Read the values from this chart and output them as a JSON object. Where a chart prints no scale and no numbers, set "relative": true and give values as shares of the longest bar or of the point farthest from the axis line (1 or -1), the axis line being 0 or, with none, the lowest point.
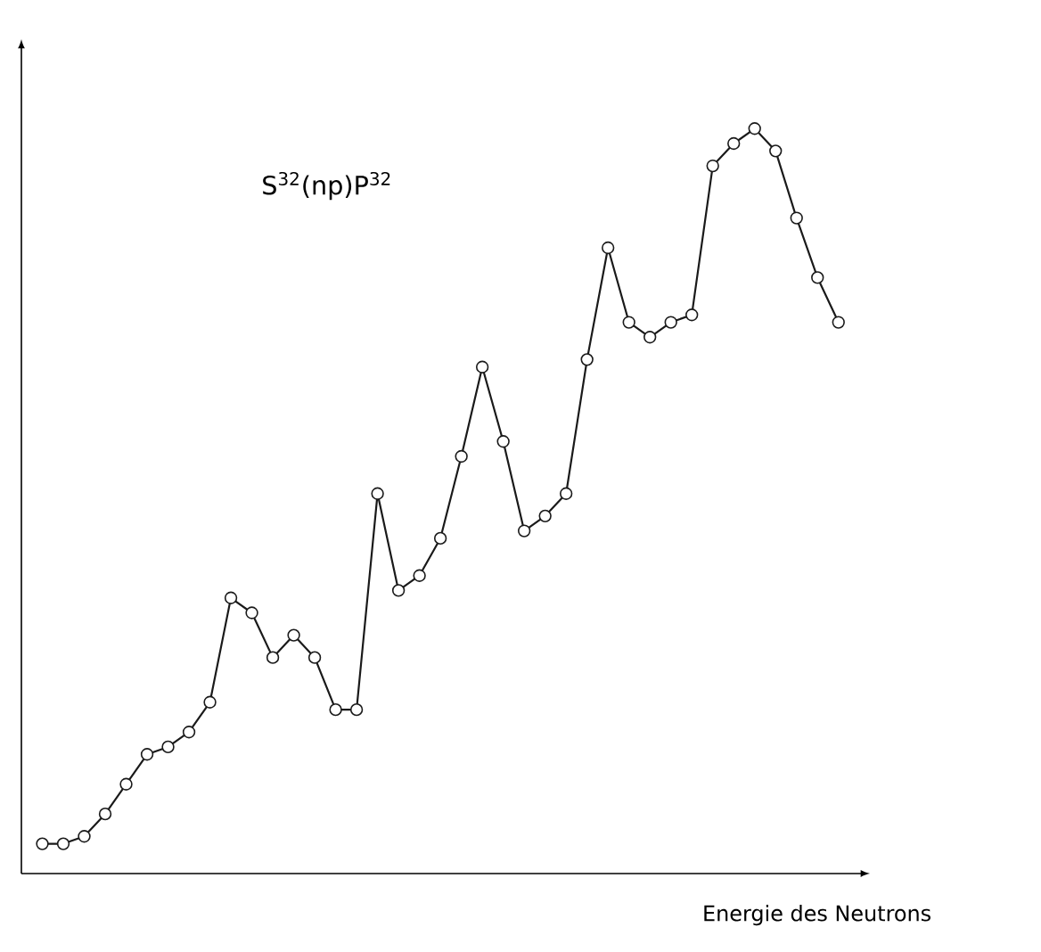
{
  "chart_data": {
    "type": "line",
    "relative": true,
    "xlabel": "Energie des Neutrons",
    "annotations": [
      "S$^{32}$(np)P$^{32}$"
    ],
    "marker": "circle",
    "line_style": "solid",
    "categories": [
      null,
      null,
      null,
      null,
      null,
      null,
      null,
      null,
      null,
      null,
      null,
      null,
      null,
      null,
      null,
      null,
      null,
      null,
      null,
      null,
      null,
      null,
      null,
      null,
      null,
      null,
      null,
      null,
      null,
      null,
      null,
      null,
      null,
      null,
      null,
      null,
      null,
      null,
      null
    ],
    "series": [
      {
        "color": "#1a1a1a",
        "values": [
          0.04,
          0.04,
          0.05,
          0.08,
          0.12,
          0.16,
          0.17,
          0.19,
          0.23,
          0.37,
          0.35,
          0.29,
          0.32,
          0.29,
          0.22,
          0.22,
          0.51,
          0.38,
          0.4,
          0.45,
          0.56,
          0.68,
          0.58,
          0.46,
          0.48,
          0.51,
          0.69,
          0.84,
          0.74,
          0.72,
          0.74,
          0.75,
          0.95,
          0.98,
          1,
          0.97,
          0.88,
          0.8,
          0.74
        ]
      }
    ]
  }
}
